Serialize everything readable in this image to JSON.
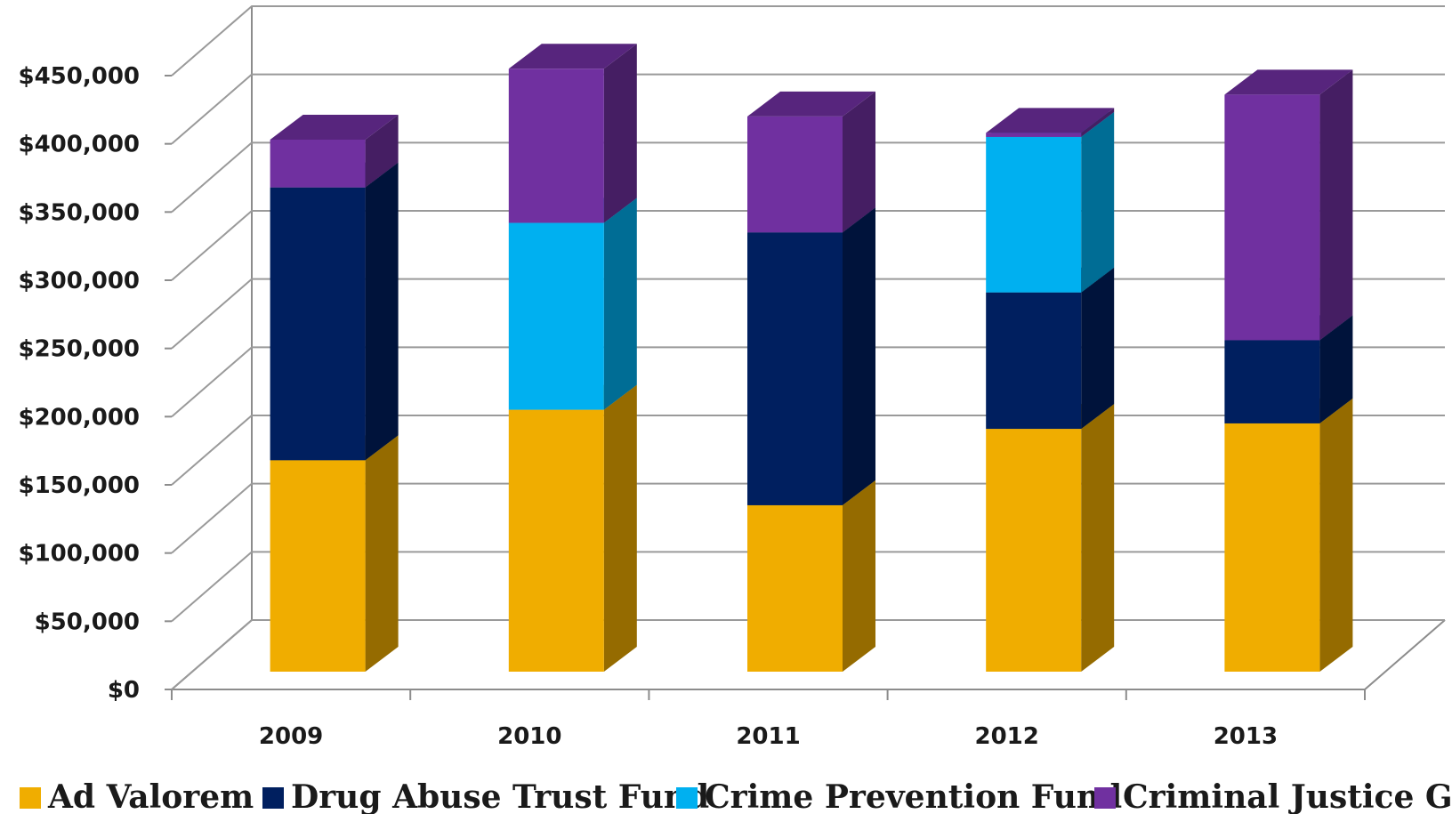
{
  "chart_data": {
    "type": "bar",
    "stacked": true,
    "three_d": true,
    "title": "",
    "xlabel": "",
    "ylabel": "",
    "categories": [
      "2009",
      "2010",
      "2011",
      "2012",
      "2013"
    ],
    "ylim": [
      0,
      450000
    ],
    "yticks": [
      "$0",
      "$50,000",
      "$100,000",
      "$150,000",
      "$200,000",
      "$250,000",
      "$300,000",
      "$350,000",
      "$400,000",
      "$450,000"
    ],
    "grid": true,
    "legend_position": "bottom",
    "series": [
      {
        "name": "Ad Valorem",
        "color": "#F0AD00",
        "values": [
          155000,
          192000,
          122000,
          178000,
          182000
        ]
      },
      {
        "name": "Drug Abuse Trust Fund",
        "color": "#001F5F",
        "values": [
          200000,
          0,
          200000,
          100000,
          61000
        ]
      },
      {
        "name": "Crime Prevention Fund",
        "color": "#00B0F0",
        "values": [
          0,
          137000,
          0,
          114000,
          0
        ]
      },
      {
        "name": "Criminal Justice Grant",
        "color": "#7030A0",
        "values": [
          35000,
          113000,
          85000,
          3000,
          180000
        ]
      }
    ]
  }
}
